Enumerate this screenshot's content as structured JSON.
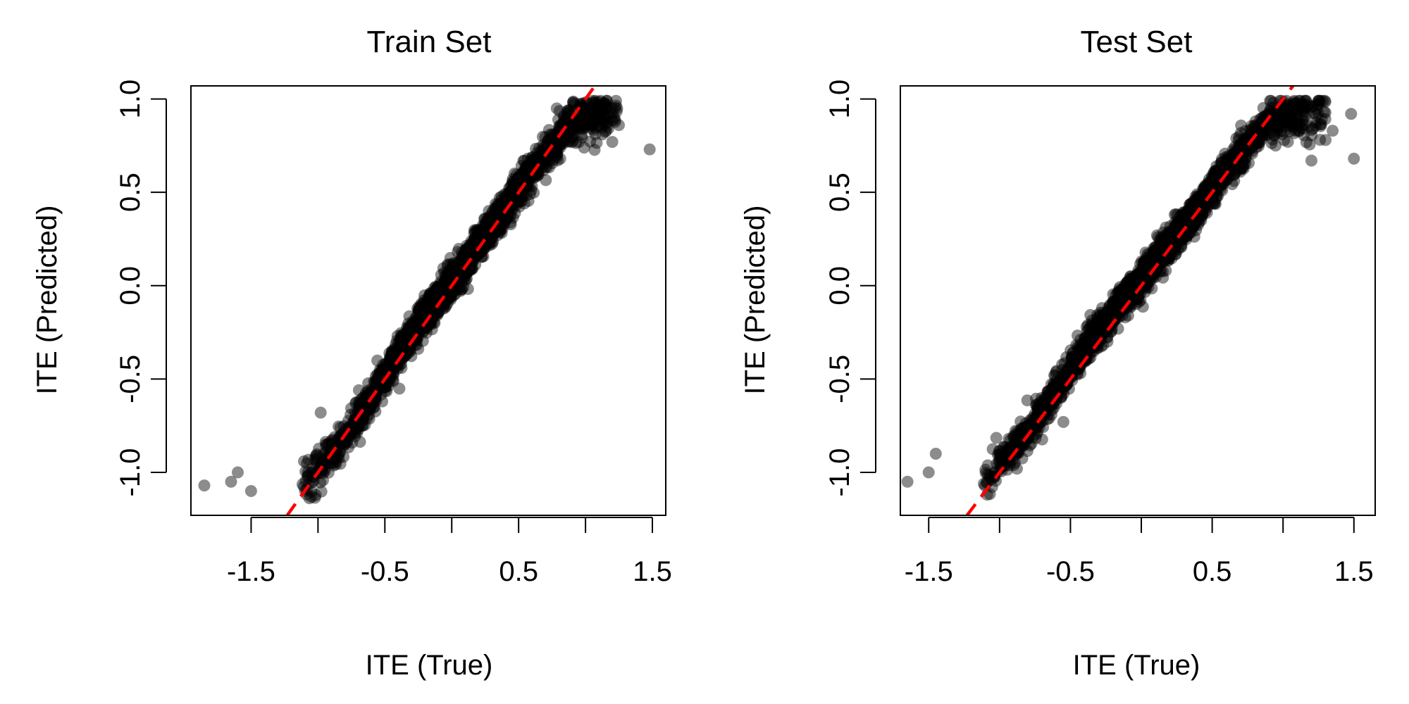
{
  "chart_data": [
    {
      "type": "scatter",
      "title": "Train Set",
      "xlabel": "ITE (True)",
      "ylabel": "ITE (Predicted)",
      "xlim": [
        -1.95,
        1.6
      ],
      "ylim": [
        -1.23,
        1.07
      ],
      "xticks": [
        -1.5,
        -1.0,
        -0.5,
        0.0,
        0.5,
        1.0,
        1.5
      ],
      "xtick_labels": [
        "-1.5",
        "",
        "-0.5",
        "",
        "0.5",
        "",
        "1.5"
      ],
      "yticks": [
        -1.0,
        -0.5,
        0.0,
        0.5,
        1.0
      ],
      "ytick_labels": [
        "-1.0",
        "-0.5",
        "0.0",
        "0.5",
        "1.0"
      ],
      "point_color": "#000000",
      "point_opacity": 0.45,
      "reference_line": {
        "slope": 1,
        "intercept": 0,
        "color": "#ff0000",
        "style": "dashed"
      },
      "points": {
        "cloud_x_range": [
          -1.12,
          1.25
        ],
        "cloud_segments": [
          [
            -1.2,
            -1.15
          ],
          [
            -0.8,
            -0.82
          ],
          [
            -0.3,
            -0.26
          ],
          [
            0.2,
            0.22
          ],
          [
            0.6,
            0.62
          ],
          [
            0.9,
            0.88
          ],
          [
            1.2,
            0.92
          ]
        ],
        "outliers": [
          [
            -1.85,
            -1.07
          ],
          [
            -1.65,
            -1.05
          ],
          [
            -1.6,
            -1.0
          ],
          [
            -1.5,
            -1.1
          ],
          [
            -0.98,
            -0.68
          ],
          [
            -0.52,
            -0.62
          ],
          [
            1.2,
            0.77
          ],
          [
            1.48,
            0.73
          ],
          [
            1.25,
            0.86
          ]
        ]
      }
    },
    {
      "type": "scatter",
      "title": "Test Set",
      "xlabel": "ITE (True)",
      "ylabel": "ITE (Predicted)",
      "xlim": [
        -1.7,
        1.65
      ],
      "ylim": [
        -1.23,
        1.07
      ],
      "xticks": [
        -1.5,
        -1.0,
        -0.5,
        0.0,
        0.5,
        1.0,
        1.5
      ],
      "xtick_labels": [
        "-1.5",
        "",
        "-0.5",
        "",
        "0.5",
        "",
        "1.5"
      ],
      "yticks": [
        -1.0,
        -0.5,
        0.0,
        0.5,
        1.0
      ],
      "ytick_labels": [
        "-1.0",
        "-0.5",
        "0.0",
        "0.5",
        "1.0"
      ],
      "point_color": "#000000",
      "point_opacity": 0.45,
      "reference_line": {
        "slope": 1,
        "intercept": 0,
        "color": "#ff0000",
        "style": "dashed"
      },
      "points": {
        "cloud_x_range": [
          -1.12,
          1.3
        ],
        "cloud_segments": [
          [
            -1.2,
            -1.13
          ],
          [
            -0.8,
            -0.78
          ],
          [
            -0.3,
            -0.24
          ],
          [
            0.2,
            0.22
          ],
          [
            0.6,
            0.62
          ],
          [
            0.9,
            0.88
          ],
          [
            1.25,
            0.93
          ]
        ],
        "outliers": [
          [
            -1.65,
            -1.05
          ],
          [
            -1.5,
            -1.0
          ],
          [
            -1.45,
            -0.9
          ],
          [
            -0.55,
            -0.73
          ],
          [
            1.3,
            0.78
          ],
          [
            1.48,
            0.92
          ],
          [
            1.5,
            0.68
          ],
          [
            1.35,
            0.83
          ],
          [
            1.2,
            0.67
          ]
        ]
      }
    }
  ]
}
